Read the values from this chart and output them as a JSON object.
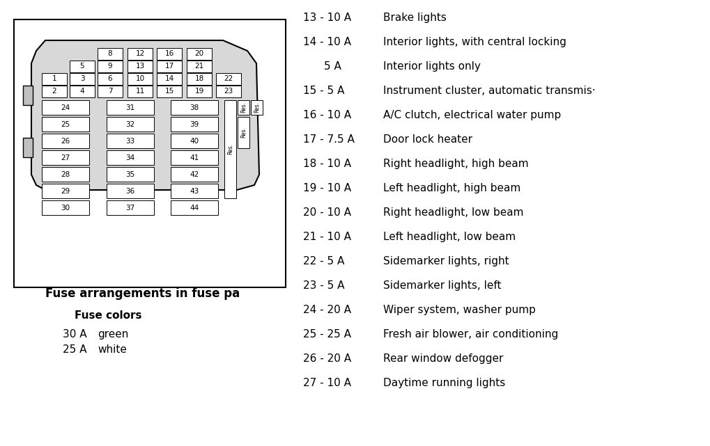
{
  "bg_color": "#ffffff",
  "title_text": "Fuse arrangements in fuse pa",
  "fuse_colors_title": "Fuse colors",
  "fuse_colors_list": [
    [
      "30 A",
      "green"
    ],
    [
      "25 A",
      "white"
    ]
  ],
  "fuse_info_lines": [
    {
      "num": "13",
      "amp": "10 A",
      "desc": "Brake lights"
    },
    {
      "num": "14",
      "amp": "10 A",
      "desc": "Interior lights, with central locking"
    },
    {
      "num": "",
      "amp": "5 A",
      "desc": "Interior lights only"
    },
    {
      "num": "15",
      "amp": "5 A",
      "desc": "Instrument cluster, automatic transmis·"
    },
    {
      "num": "16",
      "amp": "10 A",
      "desc": "A/C clutch, electrical water pump"
    },
    {
      "num": "17",
      "amp": "7.5 A",
      "desc": "Door lock heater"
    },
    {
      "num": "18",
      "amp": "10 A",
      "desc": "Right headlight, high beam"
    },
    {
      "num": "19",
      "amp": "10 A",
      "desc": "Left headlight, high beam"
    },
    {
      "num": "20",
      "amp": "10 A",
      "desc": "Right headlight, low beam"
    },
    {
      "num": "21",
      "amp": "10 A",
      "desc": "Left headlight, low beam"
    },
    {
      "num": "22",
      "amp": "5 A",
      "desc": "Sidemarker lights, right"
    },
    {
      "num": "23",
      "amp": "5 A",
      "desc": "Sidemarker lights, left"
    },
    {
      "num": "24",
      "amp": "20 A",
      "desc": "Wiper system, washer pump"
    },
    {
      "num": "25",
      "amp": "25 A",
      "desc": "Fresh air blower, air conditioning"
    },
    {
      "num": "26",
      "amp": "20 A",
      "desc": "Rear window defogger"
    },
    {
      "num": "27",
      "amp": "10 A",
      "desc": "Daytime running lights"
    }
  ],
  "diagram_fuses_bottom_cols": [
    [
      "24",
      "25",
      "26",
      "27",
      "28",
      "29",
      "30"
    ],
    [
      "31",
      "32",
      "33",
      "34",
      "35",
      "36",
      "37"
    ],
    [
      "38",
      "39",
      "40",
      "41",
      "42",
      "43",
      "44"
    ]
  ]
}
